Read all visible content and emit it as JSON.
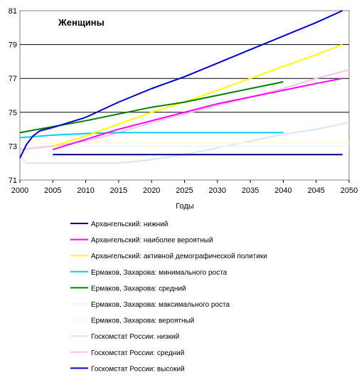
{
  "chart_data": {
    "type": "line",
    "title": "Женщины",
    "xlabel": "Годы",
    "ylabel": "",
    "xlim": [
      2000,
      2050
    ],
    "ylim": [
      71,
      81
    ],
    "x_ticks": [
      2000,
      2005,
      2010,
      2015,
      2020,
      2025,
      2030,
      2035,
      2040,
      2045,
      2050
    ],
    "y_ticks": [
      71,
      73,
      75,
      77,
      79,
      81
    ],
    "grid": "horizontal",
    "legend_position": "bottom",
    "series": [
      {
        "name": "Архангельский:  нижний",
        "color": "#000080",
        "x": [
          2005,
          2049
        ],
        "y": [
          72.5,
          72.5
        ]
      },
      {
        "name": "Архангельский:  наиболее вероятный",
        "color": "#ff00ff",
        "x": [
          2005,
          2010,
          2015,
          2020,
          2025,
          2030,
          2035,
          2040,
          2045,
          2049
        ],
        "y": [
          72.8,
          73.4,
          74.0,
          74.5,
          75.0,
          75.5,
          75.9,
          76.3,
          76.7,
          77.0
        ]
      },
      {
        "name": "Архангельский:  активной демографической политики",
        "color": "#ffff00",
        "x": [
          2005,
          2010,
          2015,
          2020,
          2025,
          2030,
          2035,
          2040,
          2045,
          2049
        ],
        "y": [
          73.0,
          73.6,
          74.3,
          75.0,
          75.6,
          76.3,
          77.0,
          77.7,
          78.4,
          79.0
        ]
      },
      {
        "name": "Ермаков, Захарова:  минимального роста",
        "color": "#00ccff",
        "x": [
          2000,
          2005,
          2010,
          2015,
          2020,
          2025,
          2030,
          2035,
          2040
        ],
        "y": [
          73.5,
          73.65,
          73.75,
          73.8,
          73.8,
          73.8,
          73.8,
          73.8,
          73.8
        ]
      },
      {
        "name": "Ермаков, Захарова:  средний",
        "color": "#008000",
        "x": [
          2000,
          2005,
          2010,
          2015,
          2020,
          2025,
          2030,
          2035,
          2040
        ],
        "y": [
          73.8,
          74.15,
          74.5,
          74.9,
          75.3,
          75.6,
          76.0,
          76.4,
          76.8
        ]
      },
      {
        "name": "Ермаков, Захарова:  максимального роста",
        "color": "#f4f4f4",
        "x": [
          2000,
          2050
        ],
        "y": [
          73.0,
          73.0
        ]
      },
      {
        "name": "Ермаков, Захарова:  вероятный",
        "color": "#fbfbe0",
        "x": [
          2000,
          2050
        ],
        "y": [
          73.2,
          73.2
        ]
      },
      {
        "name": "Госкомстат России:  низкий",
        "color": "#d7e7f7",
        "x": [
          2000,
          2001,
          2005,
          2010,
          2015,
          2020,
          2025,
          2030,
          2035,
          2040,
          2045,
          2050
        ],
        "y": [
          72.4,
          72.0,
          72.0,
          72.0,
          72.0,
          72.2,
          72.5,
          72.9,
          73.3,
          73.7,
          74.0,
          74.4
        ]
      },
      {
        "name": "Госкомстат России:  средний",
        "color": "#ffc0ee",
        "x": [
          2000,
          2005,
          2010,
          2015,
          2020,
          2025,
          2030,
          2035,
          2040,
          2045,
          2050
        ],
        "y": [
          72.8,
          73.0,
          73.3,
          73.8,
          74.4,
          74.9,
          75.4,
          75.9,
          76.4,
          77.0,
          77.5
        ]
      },
      {
        "name": "Госкомстат России:  высокий",
        "color": "#0000cc",
        "x": [
          2000,
          2001,
          2002,
          2003,
          2005,
          2010,
          2015,
          2020,
          2025,
          2030,
          2035,
          2040,
          2045,
          2049
        ],
        "y": [
          72.3,
          73.1,
          73.6,
          73.9,
          74.1,
          74.7,
          75.6,
          76.4,
          77.1,
          77.9,
          78.7,
          79.5,
          80.3,
          81.0
        ]
      }
    ]
  }
}
